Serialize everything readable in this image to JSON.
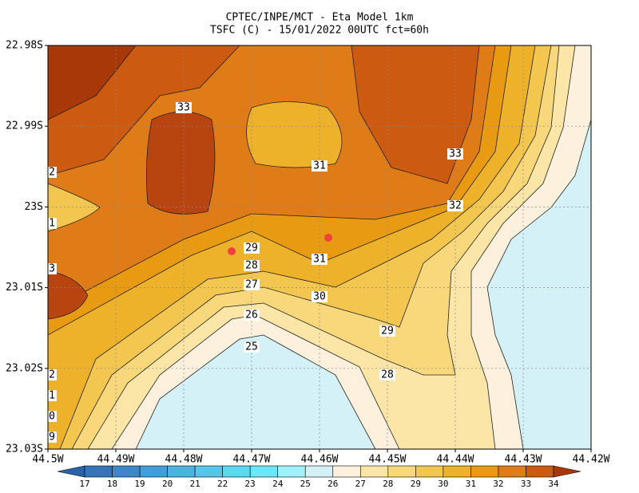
{
  "title": [
    "CPTEC/INPE/MCT -  Eta Model 1km",
    "TSFC (C) - 15/01/2022 00UTC fct=60h"
  ],
  "map": {
    "lat_labels": [
      "22.98S",
      "22.99S",
      "23S",
      "23.01S",
      "23.02S",
      "23.03S"
    ],
    "lon_labels": [
      "44.5W",
      "44.49W",
      "44.48W",
      "44.47W",
      "44.46W",
      "44.45W",
      "44.44W",
      "44.43W",
      "44.42W"
    ],
    "contour_labels": [
      "33",
      "31",
      "33",
      "32",
      "29",
      "28",
      "27",
      "26",
      "25",
      "31",
      "30",
      "29",
      "28",
      "2",
      "1",
      "3",
      "2",
      "1",
      "0",
      "9"
    ]
  },
  "colorbar": {
    "levels": [
      17,
      18,
      19,
      20,
      21,
      22,
      23,
      24,
      25,
      26,
      27,
      28,
      29,
      30,
      31,
      32,
      33,
      34
    ],
    "colors": [
      "#2a62a8",
      "#3474b8",
      "#3c88c8",
      "#439dd6",
      "#4bb2e2",
      "#53c6ec",
      "#5dd8f2",
      "#68e8f8",
      "#9ff2fb",
      "#d3f1f7",
      "#fdf1dd",
      "#fbe6a8",
      "#f9d87c",
      "#f3c650",
      "#eeb22a",
      "#e89a12",
      "#e07c18",
      "#cc5a10",
      "#a83808"
    ]
  }
}
